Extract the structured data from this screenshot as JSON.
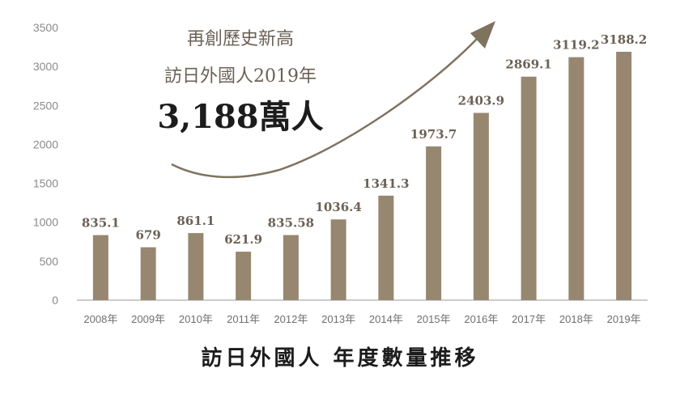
{
  "annotation": {
    "line1": "再創歷史新高",
    "line2": "訪日外國人2019年",
    "headline": "3,188萬人"
  },
  "footer_title": "訪日外國人 年度數量推移",
  "colors": {
    "bar": "#978770",
    "arrow": "#7f725f",
    "label": "#6b6155",
    "axis": "#8a8a8a"
  },
  "chart_data": {
    "type": "bar",
    "title": "訪日外國人 年度數量推移",
    "xlabel": "",
    "ylabel": "",
    "categories": [
      "2008年",
      "2009年",
      "2010年",
      "2011年",
      "2012年",
      "2013年",
      "2014年",
      "2015年",
      "2016年",
      "2017年",
      "2018年",
      "2019年"
    ],
    "values": [
      835.1,
      679,
      861.1,
      621.9,
      835.58,
      1036.4,
      1341.3,
      1973.7,
      2403.9,
      2869.1,
      3119.2,
      3188.2
    ],
    "data_labels": [
      "835.1",
      "679",
      "861.1",
      "621.9",
      "835.58",
      "1036.4",
      "1341.3",
      "1973.7",
      "2403.9",
      "2869.1",
      "3119.2",
      "3188.2"
    ],
    "ylim": [
      0,
      3500
    ],
    "yticks": [
      0,
      500,
      1000,
      1500,
      2000,
      2500,
      3000,
      3500
    ],
    "grid": false,
    "legend": "none"
  }
}
